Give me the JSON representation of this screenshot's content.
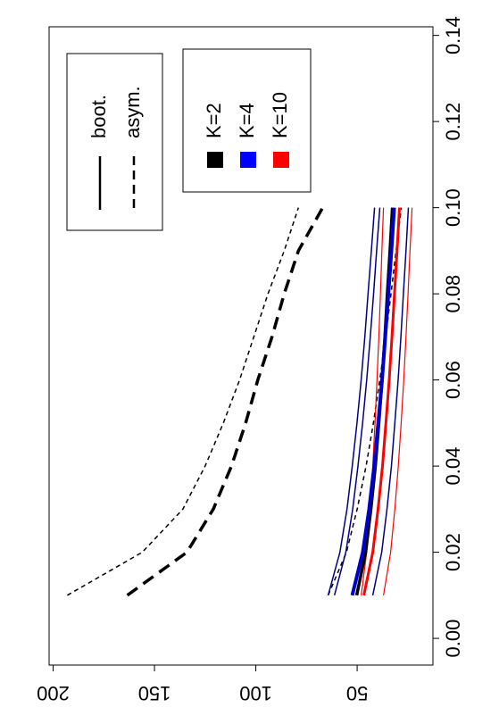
{
  "chart_data": {
    "type": "line",
    "orientation": "rotated",
    "x": [
      0.01,
      0.02,
      0.03,
      0.04,
      0.05,
      0.06,
      0.07,
      0.08,
      0.09,
      0.1
    ],
    "xlim": [
      -0.0062,
      0.142
    ],
    "xticks": [
      {
        "value": 0,
        "label": "0.00"
      },
      0.02,
      0.04,
      0.06,
      0.08,
      {
        "value": 0.1,
        "label": "0.10"
      },
      0.12,
      0.14
    ],
    "ylim": [
      12.6,
      202
    ],
    "yticks": [
      50,
      100,
      150,
      200
    ],
    "series": [
      {
        "color": "#000000",
        "dash": "dashed",
        "width": 3.5,
        "values": [
          163.4,
          134,
          121,
          112,
          105,
          99,
          92,
          86,
          79,
          67
        ]
      },
      {
        "color": "#000000",
        "dash": "dashed",
        "width": 1.5,
        "values": [
          193,
          156,
          136,
          125,
          116,
          108,
          101,
          94,
          86,
          79
        ]
      },
      {
        "color": "#000000",
        "dash": "dashed",
        "width": 1.5,
        "values": [
          64.3,
          55.3,
          50,
          45.6,
          42,
          38.8,
          35.9,
          33.3,
          30.8,
          28.2
        ]
      },
      {
        "color": "#000080",
        "dash": "solid",
        "width": 1.5,
        "values": [
          64.3,
          58.5,
          55.0,
          52.4,
          50.1,
          48.0,
          46.2,
          44.6,
          43.0,
          41.4
        ]
      },
      {
        "color": "#000080",
        "dash": "solid",
        "width": 1.5,
        "values": [
          61.2,
          55.6,
          52.2,
          49.6,
          47.3,
          45.3,
          43.5,
          41.9,
          40.4,
          38.8
        ]
      },
      {
        "color": "#ff0000",
        "dash": "solid",
        "width": 1.2,
        "values": [
          48,
          45.3,
          43.6,
          42.3,
          41.2,
          40.2,
          39.3,
          38.5,
          37.8,
          37
        ]
      },
      {
        "color": "#000000",
        "dash": "solid",
        "width": 3.5,
        "values": [
          50.2,
          45.8,
          43.2,
          41.0,
          39.3,
          37.7,
          36.3,
          35.1,
          33.8,
          32.6
        ]
      },
      {
        "color": "#0000cc",
        "dash": "solid",
        "width": 4,
        "values": [
          52.4,
          47.2,
          44.1,
          41.6,
          39.6,
          37.7,
          36.1,
          34.6,
          33.1,
          31.7
        ]
      },
      {
        "color": "#ff0000",
        "dash": "solid",
        "width": 3,
        "values": [
          46.7,
          42.3,
          39.7,
          37.5,
          35.8,
          34.2,
          32.8,
          31.6,
          30.3,
          29.1
        ]
      },
      {
        "color": "#000080",
        "dash": "solid",
        "width": 1.5,
        "values": [
          42.3,
          37.9,
          35.3,
          33.1,
          31.4,
          29.8,
          28.4,
          27.2,
          25.9,
          24.7
        ]
      },
      {
        "color": "#ff0000",
        "dash": "solid",
        "width": 1.2,
        "values": [
          37,
          33.5,
          31.4,
          29.7,
          28.3,
          27.0,
          25.9,
          24.9,
          23.9,
          22.9
        ]
      }
    ],
    "legends": [
      {
        "items": [
          {
            "label": "boot.",
            "dash": "solid"
          },
          {
            "label": "asym.",
            "dash": "dashed"
          }
        ]
      },
      {
        "items": [
          {
            "label": "K=2",
            "color": "#000000"
          },
          {
            "label": "K=4",
            "color": "#0000ff"
          },
          {
            "label": "K=10",
            "color": "#ff0000"
          }
        ]
      }
    ]
  }
}
